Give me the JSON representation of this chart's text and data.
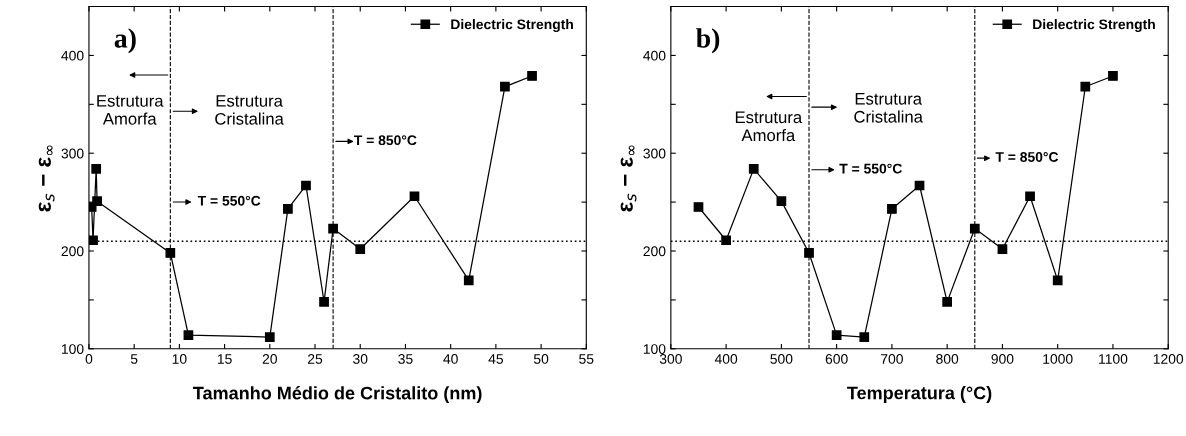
{
  "chart_data": [
    {
      "type": "line",
      "xlabel": "Tamanho Médio de Cristalito (nm)",
      "ylabel": "ε$_{s}$ − ε$_{∞}$",
      "series": [
        {
          "name": "Dielectric Strength",
          "color": "#000000",
          "x": [
            0.3,
            0.45,
            0.8,
            0.9,
            9,
            11,
            20,
            22,
            24,
            26,
            27,
            30,
            36,
            42,
            46,
            49
          ],
          "values": [
            245,
            211,
            284,
            251,
            198,
            114,
            112,
            243,
            267,
            148,
            223,
            202,
            256,
            170,
            368,
            379
          ]
        }
      ],
      "xlim": [
        0,
        55
      ],
      "xticks": [
        0,
        5,
        10,
        15,
        20,
        25,
        30,
        35,
        40,
        45,
        50,
        55
      ],
      "ylim": [
        100,
        450
      ],
      "yticks": [
        100,
        {
          "value": 150,
          "label": null
        },
        200,
        {
          "value": 250,
          "label": null
        },
        300,
        {
          "value": 350,
          "label": null
        },
        400
      ],
      "marker": "square",
      "line_style": "solid",
      "legend": "top right",
      "grid": false,
      "ref_lines": [
        {
          "axis": "x",
          "value": 9,
          "line_style": "dashed"
        },
        {
          "axis": "x",
          "value": 27,
          "line_style": "dashed"
        },
        {
          "axis": "y",
          "value": 210,
          "line_style": "dotted"
        }
      ],
      "annotations": [
        "a)",
        "Estrutura\nAmorfa",
        "Estrutura\nCristalina",
        "T = 550°C",
        "T = 850°C"
      ]
    },
    {
      "type": "line",
      "xlabel": "Temperatura (°C)",
      "ylabel": "ε$_{s}$ − ε$_{∞}$",
      "series": [
        {
          "name": "Dielectric Strength",
          "color": "#000000",
          "x": [
            350,
            400,
            450,
            500,
            550,
            600,
            650,
            700,
            750,
            800,
            850,
            900,
            950,
            1000,
            1050,
            1100
          ],
          "values": [
            245,
            211,
            284,
            251,
            198,
            114,
            112,
            243,
            267,
            148,
            223,
            202,
            256,
            170,
            368,
            379
          ]
        }
      ],
      "xlim": [
        300,
        1200
      ],
      "xticks": [
        300,
        400,
        500,
        600,
        700,
        800,
        900,
        1000,
        1100,
        1200
      ],
      "ylim": [
        100,
        450
      ],
      "yticks": [
        100,
        {
          "value": 150,
          "label": null
        },
        200,
        {
          "value": 250,
          "label": null
        },
        300,
        {
          "value": 350,
          "label": null
        },
        400
      ],
      "marker": "square",
      "line_style": "solid",
      "legend": "top right",
      "grid": false,
      "ref_lines": [
        {
          "axis": "x",
          "value": 550,
          "line_style": "dashed"
        },
        {
          "axis": "x",
          "value": 850,
          "line_style": "dashed"
        },
        {
          "axis": "y",
          "value": 210,
          "line_style": "dotted"
        }
      ],
      "annotations": [
        "b)",
        "Estrutura\nAmorfa",
        "Estrutura\nCristalina",
        "T = 550°C",
        "T = 850°C"
      ]
    }
  ]
}
